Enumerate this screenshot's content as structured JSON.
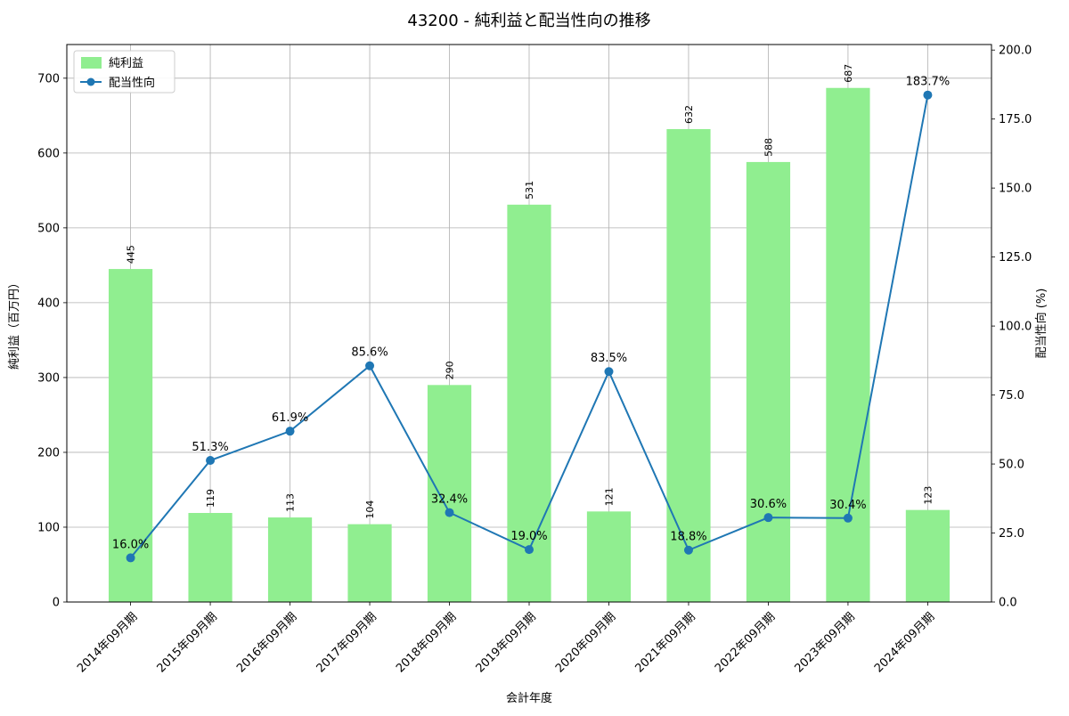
{
  "figure": {
    "background": "#ffffff"
  },
  "chart_data": {
    "type": "bar",
    "title": "43200 - 純利益と配当性向の推移",
    "xlabel": "会計年度",
    "ylabel_left": "純利益（百万円）",
    "ylabel_right": "配当性向 (%)",
    "categories": [
      "2014年09月期",
      "2015年09月期",
      "2016年09月期",
      "2017年09月期",
      "2018年09月期",
      "2019年09月期",
      "2020年09月期",
      "2021年09月期",
      "2022年09月期",
      "2023年09月期",
      "2024年09月期"
    ],
    "series": [
      {
        "name": "純利益",
        "type": "bar",
        "axis": "left",
        "color": "#90ee90",
        "values": [
          445,
          119,
          113,
          104,
          290,
          531,
          121,
          632,
          588,
          687,
          123
        ],
        "labels": [
          "445",
          "119",
          "113",
          "104",
          "290",
          "531",
          "121",
          "632",
          "588",
          "687",
          "123"
        ]
      },
      {
        "name": "配当性向",
        "type": "line",
        "axis": "right",
        "color": "#1f77b4",
        "values": [
          16.0,
          51.3,
          61.9,
          85.6,
          32.4,
          19.0,
          83.5,
          18.8,
          30.6,
          30.4,
          183.7
        ],
        "labels": [
          "16.0%",
          "51.3%",
          "61.9%",
          "85.6%",
          "32.4%",
          "19.0%",
          "83.5%",
          "18.8%",
          "30.6%",
          "30.4%",
          "183.7%"
        ]
      }
    ],
    "left_axis": {
      "ticks": [
        0,
        100,
        200,
        300,
        400,
        500,
        600,
        700
      ],
      "lim": [
        0,
        745
      ]
    },
    "right_axis": {
      "ticks": [
        0,
        25,
        50,
        75,
        100,
        125,
        150,
        175,
        200
      ],
      "tick_labels": [
        "0.0",
        "25.0",
        "50.0",
        "75.0",
        "100.0",
        "125.0",
        "150.0",
        "175.0",
        "200.0"
      ],
      "lim": [
        0,
        202
      ]
    },
    "legend": {
      "position": "upper left"
    },
    "grid": true
  }
}
